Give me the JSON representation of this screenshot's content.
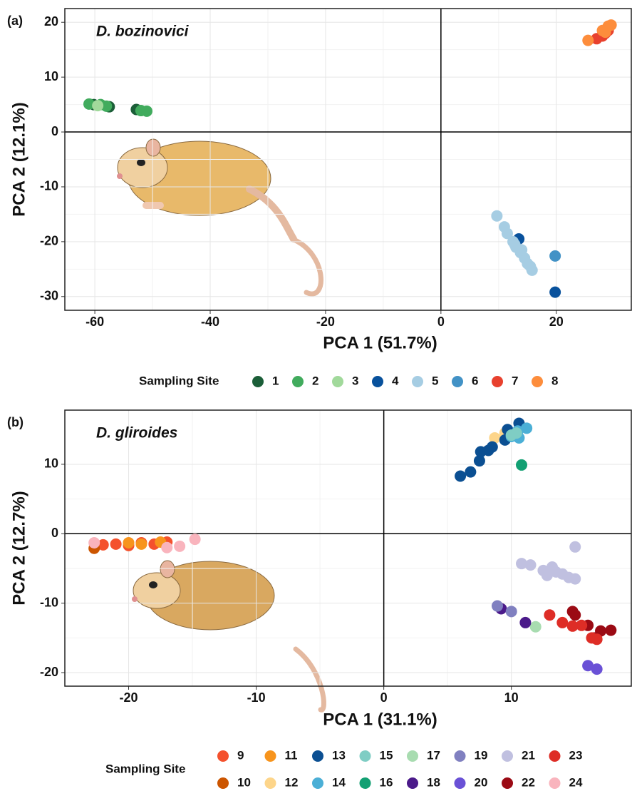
{
  "chart_data": [
    {
      "type": "scatter",
      "panel_label": "(a)",
      "annotation": "D. bozinovici",
      "x_label": "PCA 1 (51.7%)",
      "y_label": "PCA 2 (12.1%)",
      "legend_title": "Sampling Site",
      "xlim": [
        -65.2,
        33
      ],
      "ylim": [
        -32.5,
        22.5
      ],
      "xticks": [
        -60,
        -40,
        -20,
        0,
        20
      ],
      "yticks": [
        -30,
        -20,
        -10,
        0,
        10,
        20
      ],
      "grid": true,
      "series": [
        {
          "name": "1",
          "color": "#1b5e38",
          "x": [
            -57.5,
            -52.8,
            -60.2
          ],
          "y": [
            4.6,
            4.1,
            5.0
          ]
        },
        {
          "name": "2",
          "color": "#41ab5d",
          "x": [
            -61,
            -59,
            -58,
            -52,
            -51
          ],
          "y": [
            5.1,
            5.0,
            4.7,
            3.9,
            3.8
          ]
        },
        {
          "name": "3",
          "color": "#a1d99b",
          "x": [
            -59.5
          ],
          "y": [
            4.8
          ]
        },
        {
          "name": "4",
          "color": "#08519c",
          "x": [
            13.5,
            19.8
          ],
          "y": [
            -19.5,
            -29.2
          ]
        },
        {
          "name": "5",
          "color": "#a6cde3",
          "x": [
            9.7,
            11,
            11.5,
            12.5,
            13,
            13.8,
            14.5,
            15,
            15.5,
            15.8,
            12.8,
            14
          ],
          "y": [
            -15.3,
            -17.3,
            -18.5,
            -20,
            -21,
            -22,
            -23,
            -24,
            -24.5,
            -25.2,
            -20.5,
            -21.5
          ]
        },
        {
          "name": "6",
          "color": "#4292c6",
          "x": [
            19.8
          ],
          "y": [
            -22.6
          ]
        },
        {
          "name": "7",
          "color": "#e8412e",
          "x": [
            27,
            28,
            29,
            28.5
          ],
          "y": [
            17,
            17.5,
            18.5,
            18
          ]
        },
        {
          "name": "8",
          "color": "#fd8d3c",
          "x": [
            25.5,
            28,
            29,
            29.5,
            28.5
          ],
          "y": [
            16.7,
            18.5,
            19.3,
            19.5,
            18.2
          ]
        }
      ]
    },
    {
      "type": "scatter",
      "panel_label": "(b)",
      "annotation": "D. gliroides",
      "x_label": "PCA 1 (31.1%)",
      "y_label": "PCA 2 (12.7%)",
      "legend_title": "Sampling Site",
      "xlim": [
        -25,
        19.4
      ],
      "ylim": [
        -21.95,
        17.8
      ],
      "xticks": [
        -20,
        -10,
        0,
        10
      ],
      "yticks": [
        -20,
        -10,
        0,
        10
      ],
      "grid": true,
      "series": [
        {
          "name": "9",
          "color": "#f4512d",
          "x": [
            -22,
            -21,
            -20,
            -19,
            -18,
            -17
          ],
          "y": [
            -1.6,
            -1.5,
            -1.7,
            -1.3,
            -1.5,
            -1.2
          ]
        },
        {
          "name": "10",
          "color": "#cc5500",
          "x": [
            -22.7
          ],
          "y": [
            -2.1
          ]
        },
        {
          "name": "11",
          "color": "#f7941d",
          "x": [
            -20,
            -19,
            -17.5
          ],
          "y": [
            -1.3,
            -1.5,
            -1.2
          ]
        },
        {
          "name": "12",
          "color": "#fdd58a",
          "x": [
            8.7,
            9.5
          ],
          "y": [
            13.8,
            14.5
          ]
        },
        {
          "name": "13",
          "color": "#0b4f92",
          "x": [
            6,
            6.8,
            7.5,
            7.6,
            8.2,
            8.5,
            9.5,
            10.6,
            9.7
          ],
          "y": [
            8.3,
            8.9,
            10.5,
            11.8,
            12,
            12.5,
            13.5,
            15.9,
            15
          ]
        },
        {
          "name": "14",
          "color": "#4bafd6",
          "x": [
            10,
            10.6,
            11.2,
            10.5
          ],
          "y": [
            14,
            13.8,
            15.2,
            14.8
          ]
        },
        {
          "name": "15",
          "color": "#7fcdc4",
          "x": [
            10,
            10.4
          ],
          "y": [
            14.2,
            14.5
          ]
        },
        {
          "name": "16",
          "color": "#13a073",
          "x": [
            10.8
          ],
          "y": [
            9.9
          ]
        },
        {
          "name": "17",
          "color": "#a8dcb0",
          "x": [
            11.9
          ],
          "y": [
            -13.4
          ]
        },
        {
          "name": "18",
          "color": "#4b1a8a",
          "x": [
            9.2,
            11.1
          ],
          "y": [
            -10.8,
            -12.8
          ]
        },
        {
          "name": "19",
          "color": "#8080c0",
          "x": [
            8.9,
            10
          ],
          "y": [
            -10.4,
            -11.2
          ]
        },
        {
          "name": "20",
          "color": "#6a51d6",
          "x": [
            16,
            16.7
          ],
          "y": [
            -19,
            -19.5
          ]
        },
        {
          "name": "21",
          "color": "#c0c0e0",
          "x": [
            10.8,
            11.5,
            12.5,
            13.2,
            13.5,
            14,
            14.5,
            15,
            15,
            12.8
          ],
          "y": [
            -4.3,
            -4.5,
            -5.3,
            -4.8,
            -5.5,
            -5.8,
            -6.3,
            -6.5,
            -1.9,
            -6
          ]
        },
        {
          "name": "22",
          "color": "#9b0a14",
          "x": [
            14.8,
            15,
            16,
            17,
            17.8,
            16.5
          ],
          "y": [
            -11.2,
            -11.7,
            -13.2,
            -14,
            -13.9,
            -15
          ]
        },
        {
          "name": "23",
          "color": "#de2d26",
          "x": [
            13,
            14,
            14.8,
            15.5,
            16.7,
            16.3
          ],
          "y": [
            -11.7,
            -12.8,
            -13.3,
            -13.2,
            -15.2,
            -15
          ]
        },
        {
          "name": "24",
          "color": "#f9b4bd",
          "x": [
            -22.7,
            -17,
            -14.8,
            -16
          ],
          "y": [
            -1.3,
            -2,
            -0.8,
            -1.8
          ]
        }
      ]
    }
  ]
}
